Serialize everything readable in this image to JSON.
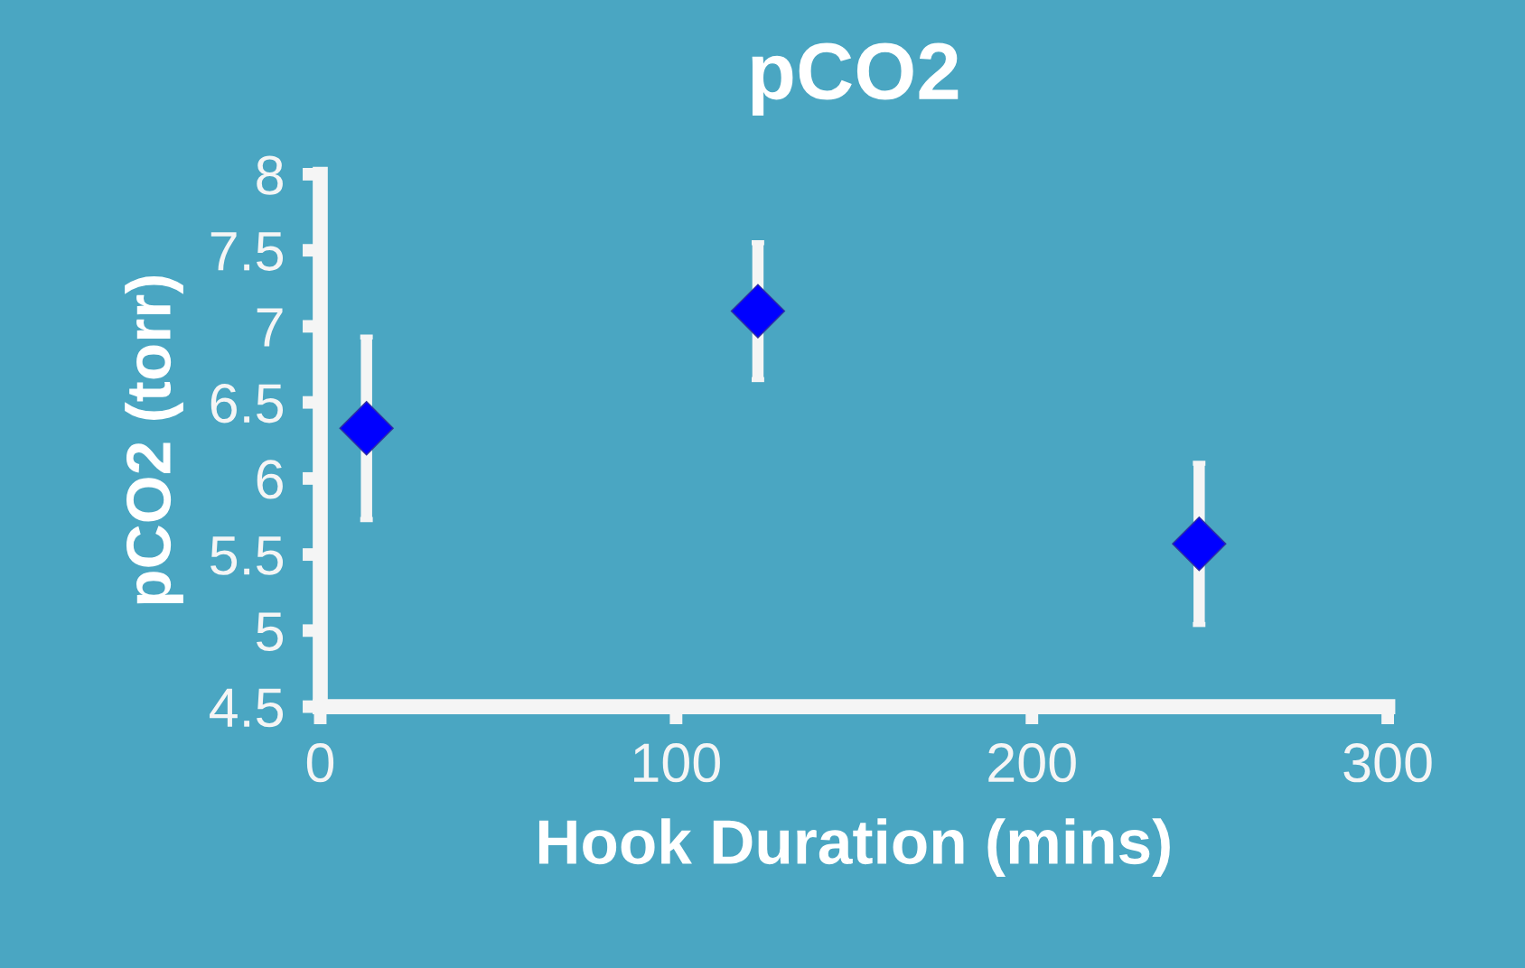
{
  "chart_data": {
    "type": "scatter",
    "title": "pCO2",
    "xlabel": "Hook Duration (mins)",
    "ylabel": "pCO2 (torr)",
    "x": [
      13,
      123,
      247
    ],
    "series": [
      {
        "color": "#0000ff",
        "values": [
          6.33,
          7.1,
          5.57
        ],
        "errors": [
          0.6,
          0.45,
          0.53
        ]
      }
    ],
    "xlim": [
      0,
      300
    ],
    "xticks": [
      0,
      100,
      200,
      300
    ],
    "ylim": [
      4.5,
      8
    ],
    "yticks": [
      4.5,
      5,
      5.5,
      6,
      6.5,
      7,
      7.5,
      8
    ],
    "marker": "diamond",
    "grid": false,
    "legend": false
  }
}
